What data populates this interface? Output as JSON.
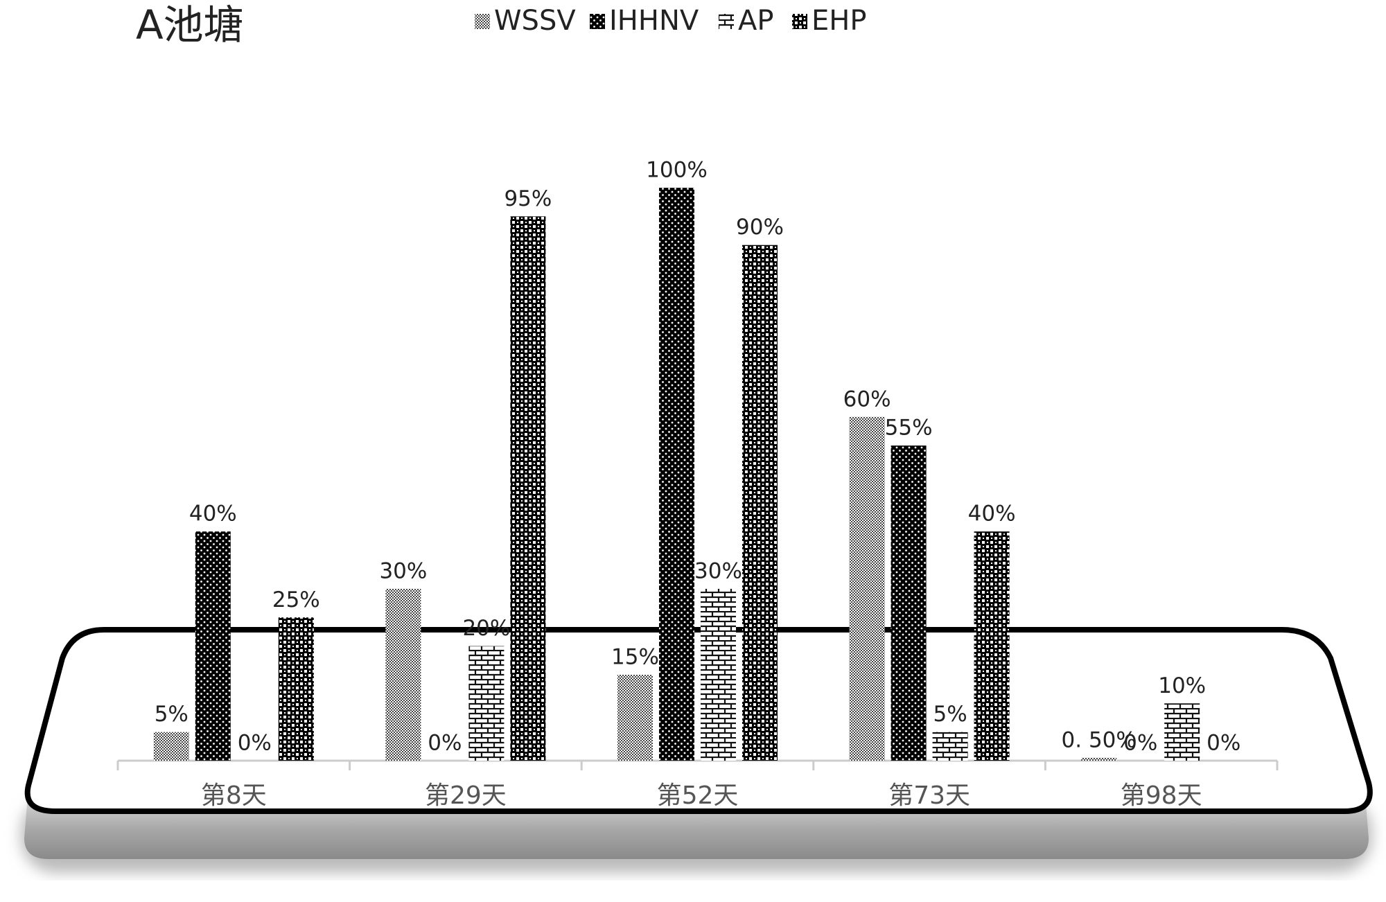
{
  "chart_data": {
    "type": "bar",
    "title": "A池塘",
    "categories": [
      "第8天",
      "第29天",
      "第52天",
      "第73天",
      "第98天"
    ],
    "series": [
      {
        "name": "WSSV",
        "color": "#444444",
        "values": [
          5,
          30,
          15,
          60,
          0.5
        ],
        "value_labels": [
          "5%",
          "30%",
          "15%",
          "60%",
          "0. 50%"
        ]
      },
      {
        "name": "IHHNV",
        "color": "#000000",
        "values": [
          40,
          0,
          100,
          55,
          0
        ],
        "value_labels": [
          "40%",
          "0%",
          "100%",
          "55%",
          "0%"
        ]
      },
      {
        "name": "AP",
        "color": "#111111",
        "values": [
          0,
          20,
          30,
          5,
          10
        ],
        "value_labels": [
          "0%",
          "20%",
          "30%",
          "5%",
          "10%"
        ]
      },
      {
        "name": "EHP",
        "color": "#000000",
        "values": [
          25,
          95,
          90,
          40,
          0
        ],
        "value_labels": [
          "25%",
          "95%",
          "90%",
          "40%",
          "0%"
        ]
      }
    ]
  }
}
